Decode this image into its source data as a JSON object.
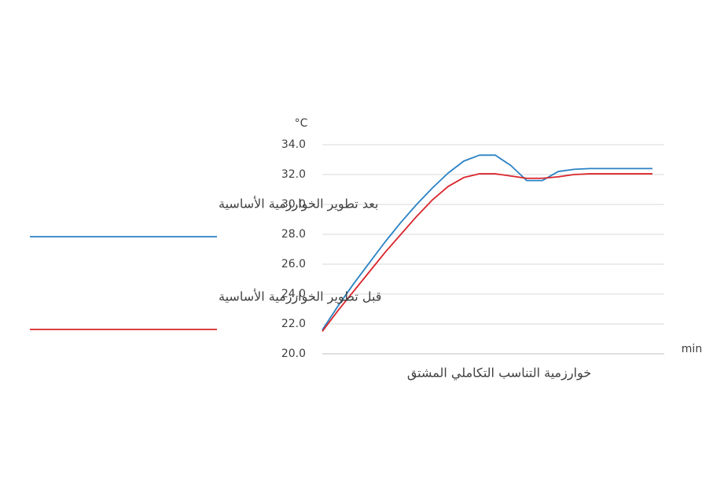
{
  "chart_data": {
    "type": "line",
    "x_label": "خوارزمية التناسب التكاملي المشتق",
    "y_unit": "°C",
    "x_unit": "min",
    "categories": [
      null,
      null,
      null,
      null,
      null,
      null,
      null,
      null,
      null,
      null,
      null,
      null,
      null,
      null,
      null,
      null,
      null,
      null,
      null,
      null,
      null,
      null
    ],
    "series": [
      {
        "name": "بعد تطوير الخوارزمية الأساسية",
        "color": "#2a82c4",
        "values": [
          21.6,
          23.2,
          24.7,
          26.1,
          27.5,
          28.8,
          30.0,
          31.1,
          32.1,
          32.9,
          33.3,
          33.3,
          32.6,
          31.6,
          31.6,
          32.2,
          32.35,
          32.4,
          32.4,
          32.4,
          32.4,
          32.4
        ]
      },
      {
        "name": "قبل تطوير الخوارزمية الأساسية",
        "color": "#d9252b",
        "values": [
          21.5,
          22.9,
          24.2,
          25.5,
          26.8,
          28.0,
          29.2,
          30.3,
          31.2,
          31.8,
          32.05,
          32.05,
          31.9,
          31.75,
          31.75,
          31.85,
          32.0,
          32.05,
          32.05,
          32.05,
          32.05,
          32.05
        ]
      }
    ],
    "ylim": [
      20,
      34
    ],
    "yticks": [
      {
        "value": 20,
        "label": "20.0"
      },
      {
        "value": 22,
        "label": "22.0"
      },
      {
        "value": 24,
        "label": "24.0"
      },
      {
        "value": 26,
        "label": "26.0"
      },
      {
        "value": 28,
        "label": "28.0"
      },
      {
        "value": 30,
        "label": "30.0"
      },
      {
        "value": 32,
        "label": "32.0"
      },
      {
        "value": 34,
        "label": "34.0"
      }
    ],
    "grid": true
  }
}
